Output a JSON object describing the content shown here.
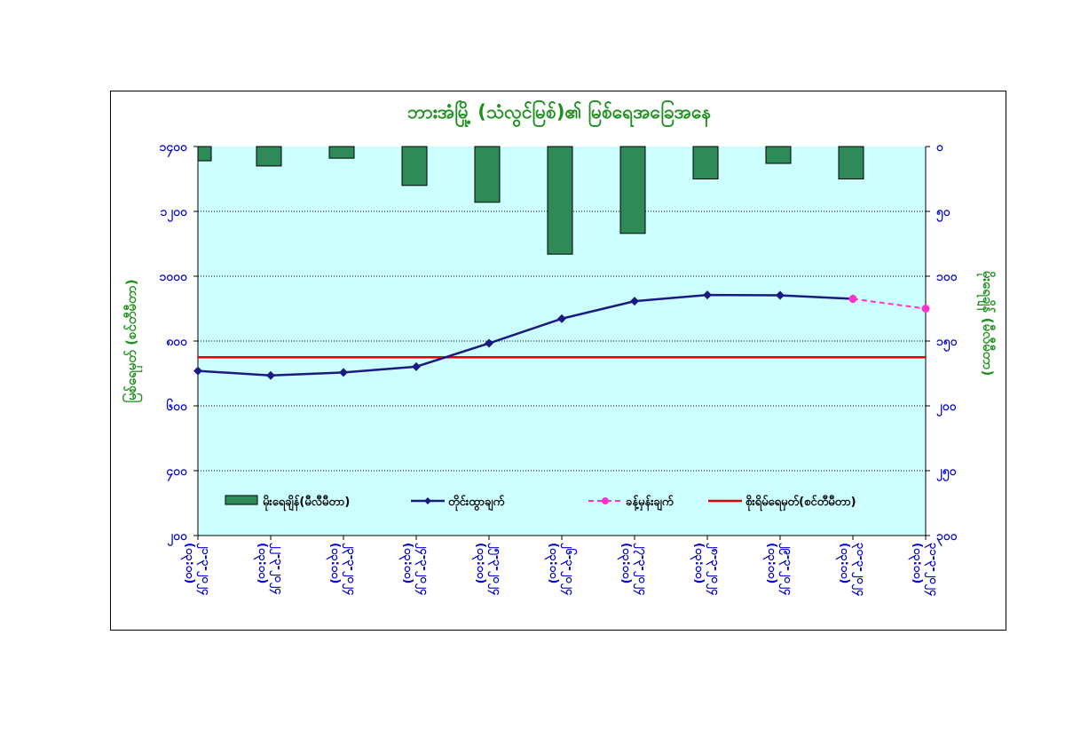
{
  "chart_data": {
    "type": "bar+line",
    "title": "ဘားအံမြို့ (သံလွင်မြစ်)၏ မြစ်ရေအခြေအနေ",
    "categories": [
      "၂၁-၃-၂၀၂၄\n(၀၃:၀၀)",
      "၂၂-၃-၂၀၂၄\n(၀၃:၀၀)",
      "၂၃-၃-၂၀၂၄\n(၀၃:၀၀)",
      "၂၄-၃-၂၀၂၄\n(၀၃:၀၀)",
      "၂၅-၃-၂၀၂၄\n(၀၃:၀၀)",
      "၂၆-၃-၂၀၂၄\n(၀၃:၀၀)",
      "၂၇-၃-၂၀၂၄\n(၀၃:၀၀)",
      "၂၈-၃-၂၀၂၄\n(၀၃:၀၀)",
      "၂၉-၃-၂၀၂၄\n(၀၃:၀၀)",
      "၃၀-၃-၂၀၂၄\n(၀၃:၀၀)",
      "၃၁-၃-၂၀၂၄\n(၀၃:၀၀)"
    ],
    "y_left": {
      "label": "မြစ်ရေမှတ် (စင်တီမီတာ)",
      "range": [
        200,
        1400
      ],
      "ticks": [
        "၂၀၀",
        "၄၀၀",
        "၆၀၀",
        "၈၀၀",
        "၁၀၀၀",
        "၁၂၀၀",
        "၁၄၀၀"
      ]
    },
    "y_right": {
      "label": "မိုးရေချိန် (မီလီမီတာ)",
      "range": [
        300,
        0
      ],
      "reversed": true,
      "ticks": [
        "၀",
        "၅၀",
        "၁၀၀",
        "၁၅၀",
        "၂၀၀",
        "၂၅၀",
        "၃၀၀"
      ]
    },
    "series": [
      {
        "name": "မိုးရေချိန်(မီလီမီတာ)",
        "type": "bar",
        "axis": "right",
        "color": "#2e8b57",
        "values": [
          11,
          15,
          9,
          30,
          43,
          83,
          67,
          25,
          13,
          25,
          null
        ]
      },
      {
        "name": "တိုင်းထွာချက်",
        "type": "line",
        "axis": "left",
        "color": "#1a1a80",
        "values": [
          708,
          694,
          703,
          721,
          793,
          869,
          923,
          942,
          941,
          930,
          null
        ]
      },
      {
        "name": "ခန့်မှန်းချက်",
        "type": "line",
        "axis": "left",
        "color": "#ff33cc",
        "dashed": true,
        "values": [
          null,
          null,
          null,
          null,
          null,
          null,
          null,
          null,
          null,
          930,
          900
        ]
      },
      {
        "name": "စိုးရိမ်ရေမှတ်(စင်တီမီတာ)",
        "type": "hline",
        "axis": "left",
        "color": "#e00000",
        "value": 750
      }
    ],
    "grid": true,
    "legend": "bottom-inside",
    "plot_background": "#ccffff"
  }
}
